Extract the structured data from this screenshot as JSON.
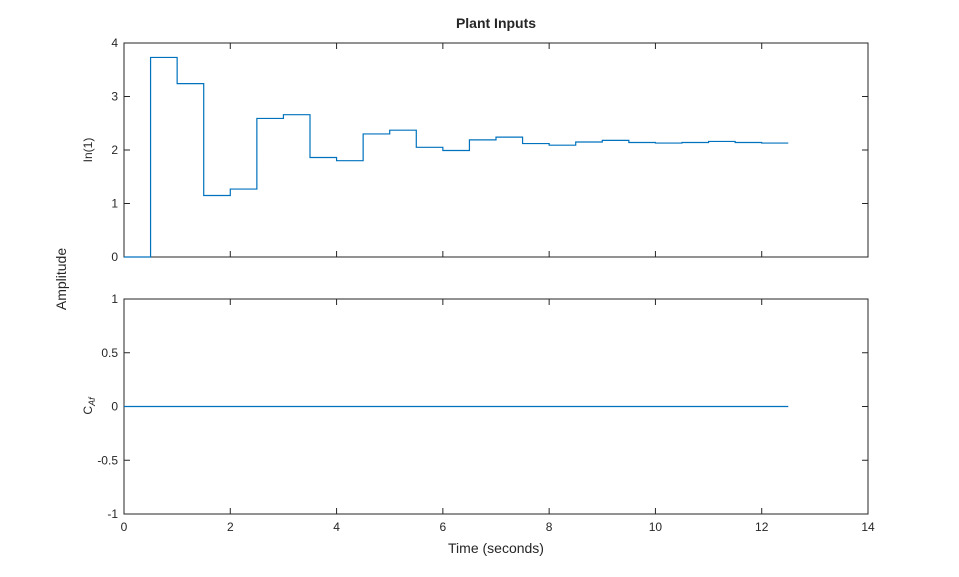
{
  "chart_data": {
    "type": "line",
    "title": "Plant Inputs",
    "xlabel": "Time (seconds)",
    "ylabel": "Amplitude",
    "xlim": [
      0,
      14
    ],
    "xticks": [
      "0",
      "2",
      "4",
      "6",
      "8",
      "10",
      "12",
      "14"
    ],
    "subplots": [
      {
        "ylabel": "In(1)",
        "ylim": [
          0,
          4
        ],
        "yticks": [
          "0",
          "1",
          "2",
          "3",
          "4"
        ],
        "style": "step",
        "color": "#0072BD",
        "series": [
          {
            "x": [
              0,
              0.5,
              1.0,
              1.5,
              2.0,
              2.5,
              3.0,
              3.5,
              4.0,
              4.5,
              5.0,
              5.5,
              6.0,
              6.5,
              7.0,
              7.5,
              8.0,
              8.5,
              9.0,
              9.5,
              10.0,
              10.5,
              11.0,
              11.5,
              12.0,
              12.5
            ],
            "y": [
              0,
              3.73,
              3.24,
              1.15,
              1.27,
              2.59,
              2.66,
              1.86,
              1.8,
              2.3,
              2.37,
              2.05,
              1.99,
              2.19,
              2.24,
              2.12,
              2.09,
              2.15,
              2.18,
              2.14,
              2.13,
              2.14,
              2.16,
              2.14,
              2.13,
              2.13
            ]
          }
        ]
      },
      {
        "ylabel": "C_Af",
        "ylim": [
          -1,
          1
        ],
        "yticks": [
          "-1",
          "-0.5",
          "0",
          "0.5",
          "1"
        ],
        "style": "line",
        "color": "#0072BD",
        "series": [
          {
            "x": [
              0,
              12.5
            ],
            "y": [
              0,
              0
            ]
          }
        ]
      }
    ]
  }
}
